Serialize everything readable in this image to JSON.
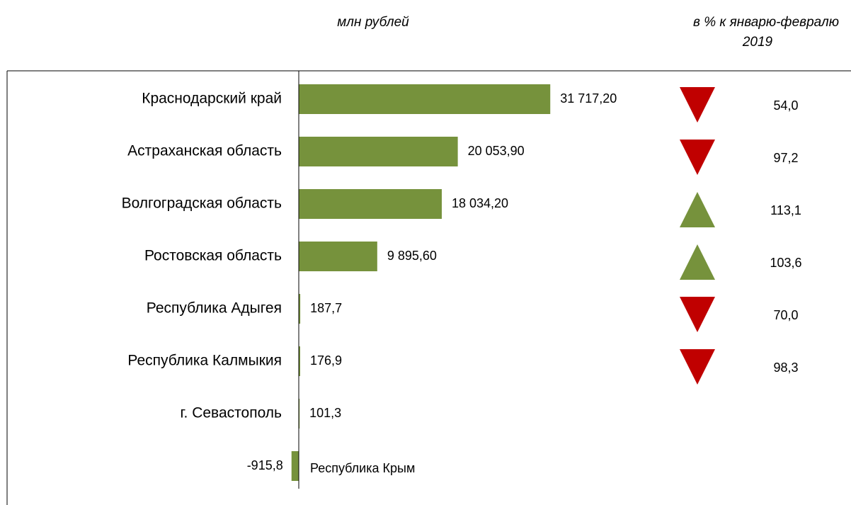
{
  "chart_data": {
    "type": "bar",
    "orientation": "horizontal",
    "value_axis_label": "млн рублей",
    "categories": [
      "Краснодарский край",
      "Астраханская область",
      "Волгоградская область",
      "Ростовская область",
      "Республика Адыгея",
      "Республика Калмыкия",
      "г. Севастополь",
      "Республика Крым"
    ],
    "values": [
      31717.2,
      20053.9,
      18034.2,
      9895.6,
      187.7,
      176.9,
      101.3,
      -915.8
    ],
    "value_labels": [
      "31 717,20",
      "20 053,90",
      "18 034,20",
      "9 895,60",
      "187,7",
      "176,9",
      "101,3",
      "-915,8"
    ],
    "color": "#76923c",
    "xlim": [
      -5000,
      40000
    ],
    "pct_title": [
      "в % к январю-февралю",
      "2019"
    ],
    "pct_values": [
      54.0,
      97.2,
      113.1,
      103.6,
      70.0,
      98.3,
      null,
      null
    ],
    "pct_value_labels": [
      "54,0",
      "97,2",
      "113,1",
      "103,6",
      "70,0",
      "98,3",
      null,
      null
    ],
    "pct_base": 100,
    "up_color": "#76923c",
    "down_color": "#c00000"
  }
}
